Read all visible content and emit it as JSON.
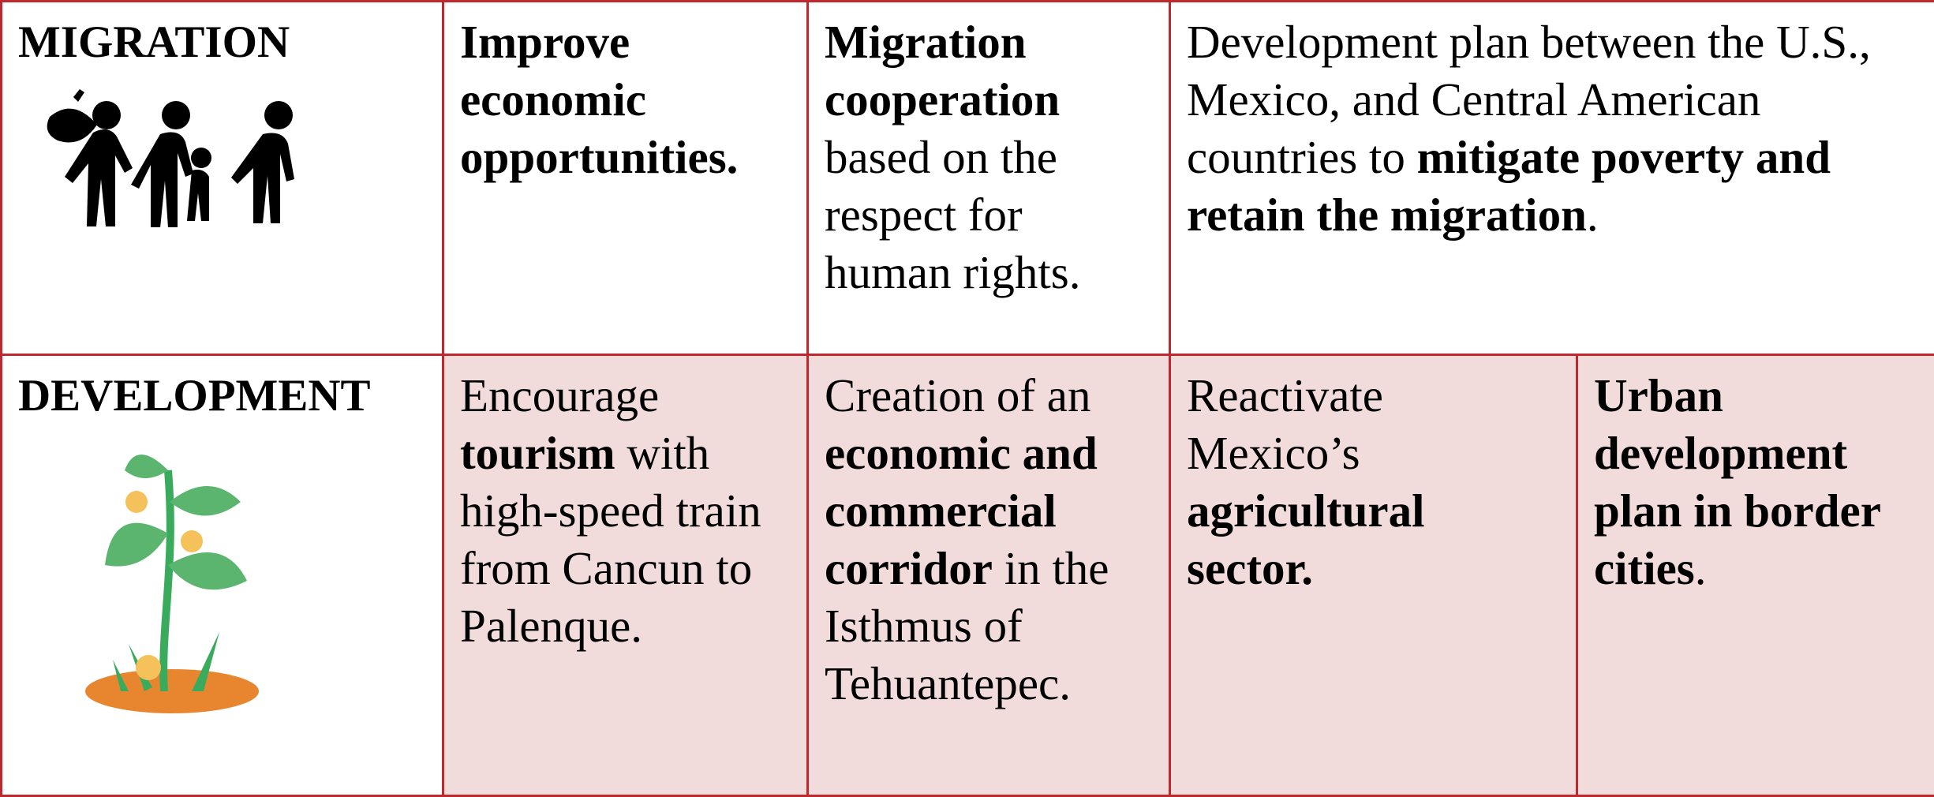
{
  "rows": [
    {
      "label": "MIGRATION",
      "cells": [
        [
          {
            "text": "Improve economic opportunities.",
            "bold": true
          }
        ],
        [
          {
            "text": "Migration cooperation",
            "bold": true
          },
          {
            "text": " based on the respect for human rights.",
            "bold": false
          }
        ],
        [
          {
            "text": "Development plan between the U.S., Mexico, and Central American countries to ",
            "bold": false
          },
          {
            "text": "mitigate poverty and retain the migration",
            "bold": true
          },
          {
            "text": ".",
            "bold": false
          }
        ]
      ]
    },
    {
      "label": "DEVELOPMENT",
      "cells": [
        [
          {
            "text": "Encourage ",
            "bold": false
          },
          {
            "text": "tourism",
            "bold": true
          },
          {
            "text": " with high-speed train from Cancun to Palenque.",
            "bold": false
          }
        ],
        [
          {
            "text": "Creation of an ",
            "bold": false
          },
          {
            "text": "economic and commercial corridor",
            "bold": true
          },
          {
            "text": " in the Isthmus of Tehuantepec.",
            "bold": false
          }
        ],
        [
          {
            "text": "Reactivate Mexico’s ",
            "bold": false
          },
          {
            "text": "agricultural sector.",
            "bold": true
          }
        ],
        [
          {
            "text": "Urban development plan in border cities",
            "bold": true
          },
          {
            "text": ".",
            "bold": false
          }
        ]
      ]
    }
  ]
}
